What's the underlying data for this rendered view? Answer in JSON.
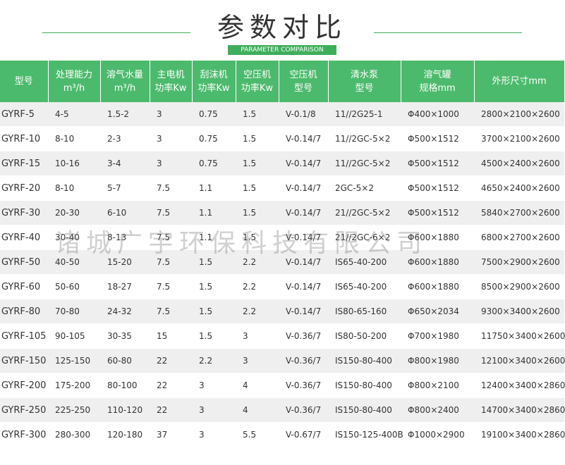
{
  "header": {
    "title": "参数对比",
    "subtitle": "PARAMETER COMPARISON"
  },
  "watermark": "诸城广宇环保科技有限公司",
  "table": {
    "columns": [
      [
        "型号"
      ],
      [
        "处理能力",
        "m³/h"
      ],
      [
        "溶气水量",
        "m³/h"
      ],
      [
        "主电机",
        "功率Kw"
      ],
      [
        "刮沫机",
        "功率Kw"
      ],
      [
        "空压机",
        "功率Kw"
      ],
      [
        "空压机",
        "型号"
      ],
      [
        "清水泵",
        "型号"
      ],
      [
        "溶气罐",
        "规格mm"
      ],
      [
        "外形尺寸mm"
      ]
    ],
    "rows": [
      [
        "GYRF-5",
        "4-5",
        "1.5-2",
        "3",
        "0.75",
        "1.5",
        "V-0.1/8",
        "11//2G25-1",
        "Φ400×1000",
        "2800×2100×2600"
      ],
      [
        "GYRF-10",
        "8-10",
        "2-3",
        "3",
        "0.75",
        "1.5",
        "V-0.14/7",
        "11//2GC-5×2",
        "Φ500×1512",
        "3700×2100×2600"
      ],
      [
        "GYRF-15",
        "10-16",
        "3-4",
        "3",
        "0.75",
        "1.5",
        "V-0.14/7",
        "11//2GC-5×2",
        "Φ500×1512",
        "4500×2400×2600"
      ],
      [
        "GYRF-20",
        "8-10",
        "5-7",
        "7.5",
        "1.1",
        "1.5",
        "V-0.14/7",
        "2GC-5×2",
        "Φ500×1512",
        "4650×2400×2600"
      ],
      [
        "GYRF-30",
        "20-30",
        "6-10",
        "7.5",
        "1.1",
        "1.5",
        "V-0.14/7",
        "21//2GC-5×2",
        "Φ500×1512",
        "5840×2700×2600"
      ],
      [
        "GYRF-40",
        "30-40",
        "8-13",
        "7.5",
        "1.1",
        "1.5",
        "V-0.14/7",
        "21//2GC-6×2",
        "Φ600×1880",
        "6800×2700×2600"
      ],
      [
        "GYRF-50",
        "40-50",
        "15-20",
        "7.5",
        "1.5",
        "2.2",
        "V-0.14/7",
        "IS65-40-200",
        "Φ600×1880",
        "7500×2900×2600"
      ],
      [
        "GYRF-60",
        "50-60",
        "18-27",
        "7.5",
        "1.5",
        "2.2",
        "V-0.14/7",
        "IS65-40-200",
        "Φ600×1880",
        "8500×2900×2600"
      ],
      [
        "GYRF-80",
        "70-80",
        "24-32",
        "7.5",
        "1.5",
        "2.2",
        "V-0.14/7",
        "IS80-65-160",
        "Φ650×2034",
        "9300×3400×2600"
      ],
      [
        "GYRF-105",
        "90-105",
        "30-35",
        "15",
        "1.5",
        "3",
        "V-0.36/7",
        "IS80-50-200",
        "Φ700×1980",
        "11750×3400×2600"
      ],
      [
        "GYRF-150",
        "125-150",
        "60-80",
        "22",
        "2.2",
        "3",
        "V-0.36/7",
        "IS150-80-400",
        "Φ800×1980",
        "12100×3400×2600"
      ],
      [
        "GYRF-200",
        "175-200",
        "80-100",
        "22",
        "3",
        "4",
        "V-0.36/7",
        "IS150-80-400",
        "Φ800×2100",
        "12400×3400×2860"
      ],
      [
        "GYRF-250",
        "225-250",
        "110-120",
        "22",
        "3",
        "4",
        "V-0.36/7",
        "IS150-80-400",
        "Φ800×2400",
        "14700×3400×2860"
      ],
      [
        "GYRF-300",
        "280-300",
        "120-180",
        "37",
        "3",
        "5.5",
        "V-0.67/7",
        "IS150-125-400B",
        "Φ1000×2900",
        "19100×3400×2860"
      ]
    ]
  }
}
